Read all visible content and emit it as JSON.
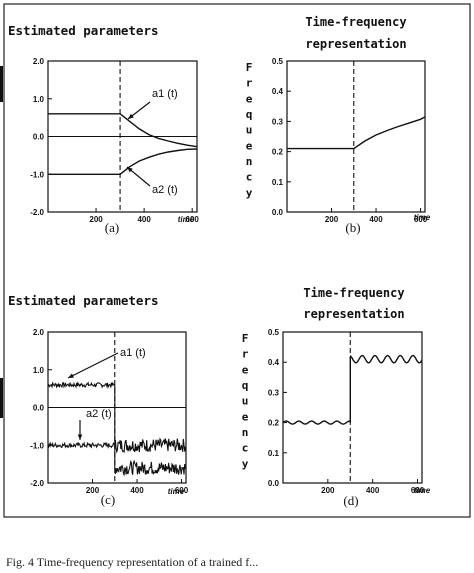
{
  "caption": "Fig. 4 Time-frequency representation of a trained f...",
  "chart_data": [
    {
      "id": "a",
      "type": "line",
      "title": "Estimated parameters",
      "panel_label": "(a)",
      "xlabel": "time",
      "xticks": [
        200,
        400,
        600
      ],
      "xlim": [
        0,
        620
      ],
      "ylim": [
        -2.0,
        2.0
      ],
      "yticks": [
        "2.0",
        "1.0",
        "0.0",
        "-1.0",
        "-2.0"
      ],
      "ytick_values": [
        2.0,
        1.0,
        0.0,
        -1.0,
        -2.0
      ],
      "vline_x": 300,
      "annotations": [
        "a1 (t)",
        "a2 (t)"
      ],
      "series": [
        {
          "name": "a1 (t)",
          "x": [
            0,
            300,
            340,
            380,
            420,
            460,
            500,
            540,
            580,
            620
          ],
          "y": [
            0.6,
            0.6,
            0.4,
            0.2,
            0.05,
            -0.05,
            -0.12,
            -0.18,
            -0.23,
            -0.27
          ]
        },
        {
          "name": "a2 (t)",
          "x": [
            0,
            300,
            340,
            380,
            420,
            460,
            500,
            540,
            580,
            620
          ],
          "y": [
            -1.0,
            -1.0,
            -0.8,
            -0.65,
            -0.55,
            -0.47,
            -0.41,
            -0.37,
            -0.34,
            -0.33
          ]
        }
      ]
    },
    {
      "id": "b",
      "type": "line",
      "title": "Time-frequency representation",
      "panel_label": "(b)",
      "xlabel": "time",
      "ylabel": "Frequency",
      "xticks": [
        200,
        400,
        600
      ],
      "xlim": [
        0,
        620
      ],
      "ylim": [
        0.0,
        0.5
      ],
      "yticks": [
        "0.5",
        "0.4",
        "0.3",
        "0.2",
        "0.1",
        "0.0"
      ],
      "ytick_values": [
        0.5,
        0.4,
        0.3,
        0.2,
        0.1,
        0.0
      ],
      "vline_x": 300,
      "series": [
        {
          "x": [
            0,
            300,
            350,
            400,
            450,
            500,
            550,
            600,
            620
          ],
          "y": [
            0.21,
            0.21,
            0.235,
            0.255,
            0.27,
            0.283,
            0.295,
            0.307,
            0.315
          ]
        }
      ]
    },
    {
      "id": "c",
      "type": "line",
      "title": "Estimated parameters",
      "panel_label": "(c)",
      "xlabel": "time",
      "xticks": [
        200,
        400,
        600
      ],
      "xlim": [
        0,
        620
      ],
      "ylim": [
        -2.0,
        2.0
      ],
      "yticks": [
        "2.0",
        "1.0",
        "0.0",
        "-1.0",
        "-2.0"
      ],
      "ytick_values": [
        2.0,
        1.0,
        0.0,
        -1.0,
        -2.0
      ],
      "vline_x": 300,
      "noisy": true,
      "annotations": [
        "a1 (t)",
        "a2 (t)"
      ],
      "series": [
        {
          "name": "a1 (t)",
          "x": [
            0,
            300,
            300,
            620
          ],
          "y": [
            0.6,
            0.6,
            -1.0,
            -1.0
          ]
        },
        {
          "name": "a2 (t)",
          "x": [
            0,
            300,
            300,
            620
          ],
          "y": [
            -1.0,
            -1.0,
            -1.6,
            -1.6
          ]
        }
      ]
    },
    {
      "id": "d",
      "type": "line",
      "title": "Time-frequency representation",
      "panel_label": "(d)",
      "xlabel": "time",
      "ylabel": "Frequency",
      "xticks": [
        200,
        400,
        600
      ],
      "xlim": [
        0,
        620
      ],
      "ylim": [
        0.0,
        0.5
      ],
      "yticks": [
        "0.5",
        "0.4",
        "0.3",
        "0.2",
        "0.1",
        "0.0"
      ],
      "ytick_values": [
        0.5,
        0.4,
        0.3,
        0.2,
        0.1,
        0.0
      ],
      "vline_x": 300,
      "noisy_small": true,
      "series": [
        {
          "x": [
            0,
            300,
            300,
            620
          ],
          "y": [
            0.2,
            0.2,
            0.41,
            0.41
          ]
        }
      ]
    }
  ]
}
